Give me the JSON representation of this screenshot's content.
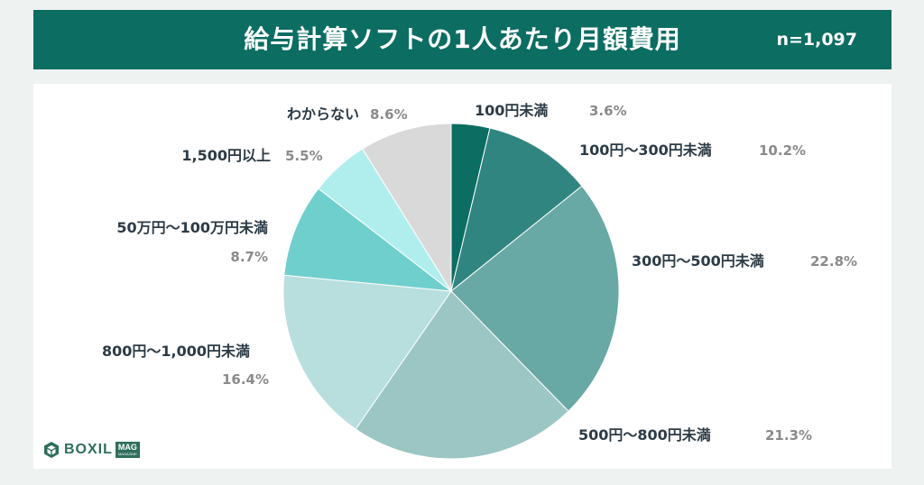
{
  "header": {
    "title": "給与計算ソフトの1人あたり月額費用",
    "sample": "n=1,097"
  },
  "logo": {
    "word": "BOXIL",
    "badge": "MAG",
    "badge_sub": "MAGAZINE"
  },
  "colors": {
    "title_bar": "#0c6d62",
    "background": "#eef2f1",
    "label": "#2c3b45",
    "percent": "#8a8a8a"
  },
  "chart_data": {
    "type": "pie",
    "title": "給与計算ソフトの1人あたり月額費用",
    "start": "12 o'clock",
    "direction": "clockwise",
    "slices": [
      {
        "label": "100円未満",
        "value": 3.6,
        "percent_label": "3.6%",
        "color": "#0c6d62"
      },
      {
        "label": "100円～300円未満",
        "value": 10.2,
        "percent_label": "10.2%",
        "color": "#318580"
      },
      {
        "label": "300円～500円未満",
        "value": 22.8,
        "percent_label": "22.8%",
        "color": "#68a8a5"
      },
      {
        "label": "500円～800円未満",
        "value": 21.3,
        "percent_label": "21.3%",
        "color": "#9cc6c4"
      },
      {
        "label": "800円～1,000円未満",
        "value": 16.4,
        "percent_label": "16.4%",
        "color": "#b8dedd"
      },
      {
        "label": "50万円～100万円未満",
        "value": 8.7,
        "percent_label": "8.7%",
        "color": "#6fcfcd"
      },
      {
        "label": "1,500円以上",
        "value": 5.5,
        "percent_label": "5.5%",
        "color": "#b0eeee"
      },
      {
        "label": "わからない",
        "value": 8.6,
        "percent_label": "8.6%",
        "color": "#d9d9d9"
      }
    ]
  }
}
